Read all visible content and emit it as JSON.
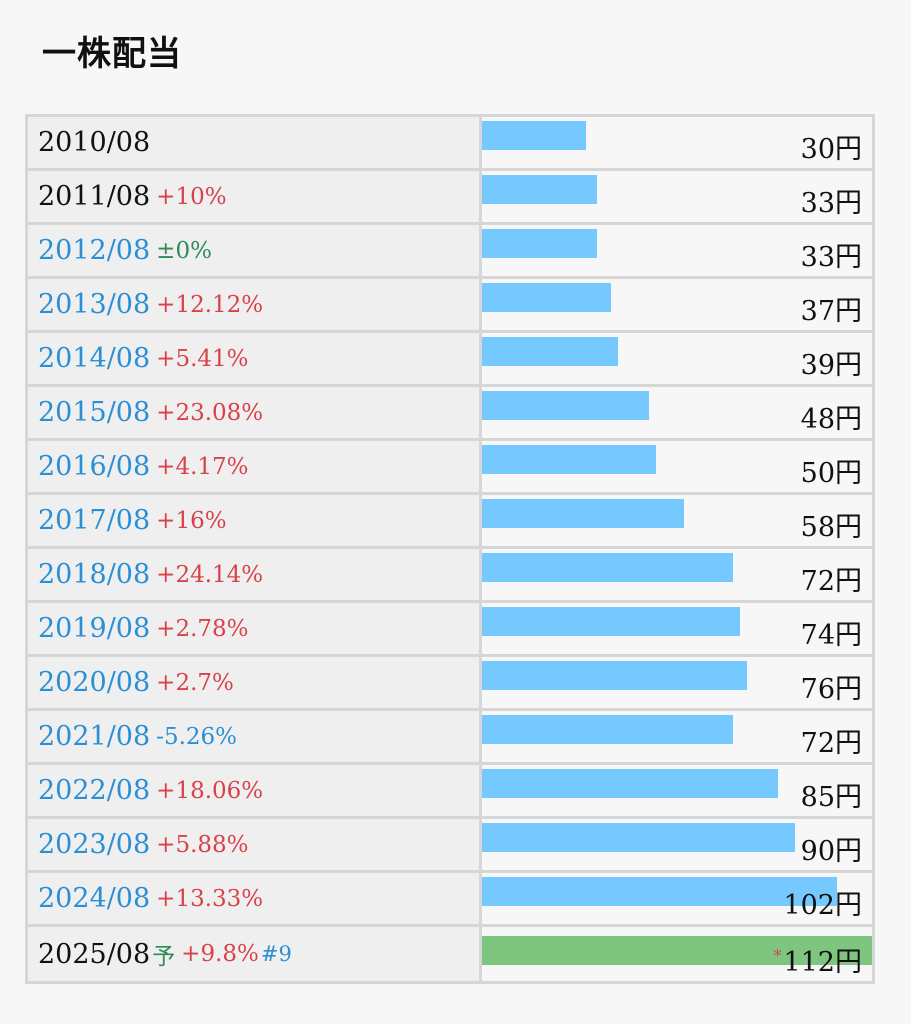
{
  "title": "一株配当",
  "unit": "円",
  "chart_data": {
    "type": "bar",
    "orientation": "horizontal",
    "title": "一株配当",
    "xlim": [
      0,
      112
    ],
    "categories": [
      "2010/08",
      "2011/08",
      "2012/08",
      "2013/08",
      "2014/08",
      "2015/08",
      "2016/08",
      "2017/08",
      "2018/08",
      "2019/08",
      "2020/08",
      "2021/08",
      "2022/08",
      "2023/08",
      "2024/08",
      "2025/08"
    ],
    "rows": [
      {
        "period": "2010/08",
        "change": "",
        "dir": "none",
        "value": 30,
        "value_label": "30円",
        "linked": false
      },
      {
        "period": "2011/08",
        "change": "+10%",
        "dir": "up",
        "value": 33,
        "value_label": "33円",
        "linked": false
      },
      {
        "period": "2012/08",
        "change": "±0%",
        "dir": "flat",
        "value": 33,
        "value_label": "33円",
        "linked": true
      },
      {
        "period": "2013/08",
        "change": "+12.12%",
        "dir": "up",
        "value": 37,
        "value_label": "37円",
        "linked": true
      },
      {
        "period": "2014/08",
        "change": "+5.41%",
        "dir": "up",
        "value": 39,
        "value_label": "39円",
        "linked": true
      },
      {
        "period": "2015/08",
        "change": "+23.08%",
        "dir": "up",
        "value": 48,
        "value_label": "48円",
        "linked": true
      },
      {
        "period": "2016/08",
        "change": "+4.17%",
        "dir": "up",
        "value": 50,
        "value_label": "50円",
        "linked": true
      },
      {
        "period": "2017/08",
        "change": "+16%",
        "dir": "up",
        "value": 58,
        "value_label": "58円",
        "linked": true
      },
      {
        "period": "2018/08",
        "change": "+24.14%",
        "dir": "up",
        "value": 72,
        "value_label": "72円",
        "linked": true
      },
      {
        "period": "2019/08",
        "change": "+2.78%",
        "dir": "up",
        "value": 74,
        "value_label": "74円",
        "linked": true
      },
      {
        "period": "2020/08",
        "change": "+2.7%",
        "dir": "up",
        "value": 76,
        "value_label": "76円",
        "linked": true
      },
      {
        "period": "2021/08",
        "change": "-5.26%",
        "dir": "down",
        "value": 72,
        "value_label": "72円",
        "linked": true
      },
      {
        "period": "2022/08",
        "change": "+18.06%",
        "dir": "up",
        "value": 85,
        "value_label": "85円",
        "linked": true
      },
      {
        "period": "2023/08",
        "change": "+5.88%",
        "dir": "up",
        "value": 90,
        "value_label": "90円",
        "linked": true
      },
      {
        "period": "2024/08",
        "change": "+13.33%",
        "dir": "up",
        "value": 102,
        "value_label": "102円",
        "linked": true
      },
      {
        "period": "2025/08",
        "forecast_mark": "予",
        "change": "+9.8%",
        "footnote": "#9",
        "dir": "up",
        "value": 112,
        "value_label": "112円",
        "star": "*",
        "forecast": true,
        "linked": false
      }
    ],
    "colors": {
      "bar": "#76c9ff",
      "forecast_bar": "#7ec680",
      "up": "#d9424a",
      "down": "#2b8fd6",
      "flat": "#2e8b57",
      "link": "#2b8fd6"
    }
  }
}
